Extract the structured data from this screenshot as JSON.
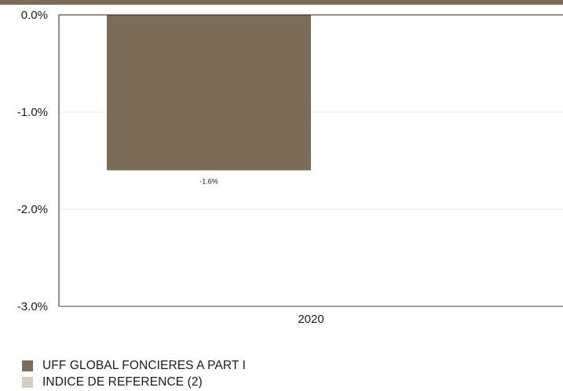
{
  "chart_data": {
    "type": "bar",
    "categories": [
      "2020"
    ],
    "series": [
      {
        "name": "UFF GLOBAL FONCIERES A PART I",
        "values": [
          -1.6
        ],
        "color": "#7a6c56"
      },
      {
        "name": "INDICE DE REFERENCE (2)",
        "values": [
          null
        ],
        "color": "#d4cdc4"
      }
    ],
    "data_labels": [
      "-1.6%"
    ],
    "y_ticks": [
      "0.0%",
      "-1.0%",
      "-2.0%",
      "-3.0%"
    ],
    "ylim": [
      -3.0,
      0.0
    ],
    "grid": true,
    "legend_position": "bottom-left",
    "title": "",
    "xlabel": "",
    "ylabel": ""
  }
}
